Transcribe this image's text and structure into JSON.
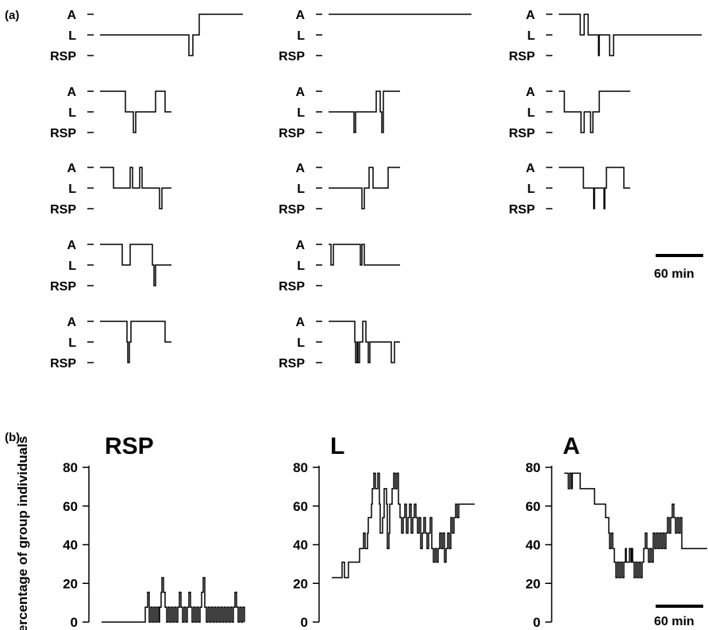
{
  "panel_labels": {
    "a": "(a)",
    "b": "(b)"
  },
  "scale_bar_label": "60 min",
  "chart_data": [
    {
      "type": "line",
      "panel": "(a)",
      "state_labels": [
        "A",
        "L",
        "RSP"
      ],
      "x_units": "min",
      "traces": [
        {
          "steps": [
            [
              0,
              "L"
            ],
            [
              112,
              "RSP"
            ],
            [
              117,
              "L"
            ],
            [
              125,
              "A"
            ],
            [
              180,
              "A"
            ]
          ]
        },
        {
          "steps": [
            [
              0,
              "A"
            ],
            [
              180,
              "A"
            ]
          ]
        },
        {
          "steps": [
            [
              0,
              "A"
            ],
            [
              27,
              "L"
            ],
            [
              32,
              "A"
            ],
            [
              37,
              "L"
            ],
            [
              41,
              "L"
            ],
            [
              50,
              "RSP"
            ],
            [
              51,
              "L"
            ],
            [
              64,
              "RSP"
            ],
            [
              69,
              "L"
            ],
            [
              180,
              "L"
            ]
          ]
        },
        {
          "steps": [
            [
              0,
              "A"
            ],
            [
              32,
              "L"
            ],
            [
              42,
              "RSP"
            ],
            [
              45,
              "L"
            ],
            [
              70,
              "A"
            ],
            [
              82,
              "L"
            ],
            [
              90,
              "L"
            ]
          ]
        },
        {
          "steps": [
            [
              0,
              "L"
            ],
            [
              32,
              "RSP"
            ],
            [
              34,
              "L"
            ],
            [
              60,
              "A"
            ],
            [
              63,
              "A"
            ],
            [
              65,
              "L"
            ],
            [
              67,
              "RSP"
            ],
            [
              69,
              "A"
            ],
            [
              90,
              "A"
            ]
          ]
        },
        {
          "steps": [
            [
              0,
              "A"
            ],
            [
              7,
              "L"
            ],
            [
              28,
              "RSP"
            ],
            [
              32,
              "L"
            ],
            [
              40,
              "RSP"
            ],
            [
              43,
              "L"
            ],
            [
              51,
              "A"
            ],
            [
              90,
              "A"
            ]
          ]
        },
        {
          "steps": [
            [
              0,
              "A"
            ],
            [
              17,
              "L"
            ],
            [
              38,
              "A"
            ],
            [
              41,
              "L"
            ],
            [
              50,
              "A"
            ],
            [
              53,
              "L"
            ],
            [
              75,
              "RSP"
            ],
            [
              78,
              "L"
            ],
            [
              90,
              "L"
            ]
          ]
        },
        {
          "steps": [
            [
              0,
              "L"
            ],
            [
              42,
              "RSP"
            ],
            [
              45,
              "L"
            ],
            [
              51,
              "A"
            ],
            [
              56,
              "L"
            ],
            [
              75,
              "A"
            ],
            [
              90,
              "A"
            ]
          ]
        },
        {
          "steps": [
            [
              0,
              "A"
            ],
            [
              31,
              "L"
            ],
            [
              44,
              "RSP"
            ],
            [
              45,
              "L"
            ],
            [
              57,
              "RSP"
            ],
            [
              58,
              "L"
            ],
            [
              60,
              "A"
            ],
            [
              82,
              "L"
            ],
            [
              90,
              "L"
            ]
          ]
        },
        {
          "steps": [
            [
              0,
              "A"
            ],
            [
              28,
              "L"
            ],
            [
              38,
              "A"
            ],
            [
              66,
              "L"
            ],
            [
              68,
              "RSP"
            ],
            [
              70,
              "L"
            ],
            [
              90,
              "L"
            ]
          ]
        },
        {
          "steps": [
            [
              0,
              "A"
            ],
            [
              3,
              "L"
            ],
            [
              6,
              "A"
            ],
            [
              40,
              "L"
            ],
            [
              42,
              "A"
            ],
            [
              45,
              "L"
            ],
            [
              90,
              "L"
            ]
          ]
        },
        {
          "steps": [
            [
              0,
              "A"
            ],
            [
              34,
              "L"
            ],
            [
              35,
              "RSP"
            ],
            [
              37,
              "L"
            ],
            [
              39,
              "A"
            ],
            [
              82,
              "L"
            ],
            [
              90,
              "L"
            ]
          ]
        },
        {
          "steps": [
            [
              0,
              "A"
            ],
            [
              33,
              "L"
            ],
            [
              34,
              "RSP"
            ],
            [
              36,
              "L"
            ],
            [
              37,
              "RSP"
            ],
            [
              39,
              "L"
            ],
            [
              43,
              "A"
            ],
            [
              47,
              "L"
            ],
            [
              50,
              "RSP"
            ],
            [
              52,
              "L"
            ],
            [
              79,
              "RSP"
            ],
            [
              83,
              "L"
            ],
            [
              90,
              "L"
            ]
          ]
        }
      ]
    },
    {
      "type": "line",
      "panel": "(b)",
      "title": "RSP",
      "ylabel": "Percentage of group individuals",
      "y_ticks": [
        0,
        20,
        40,
        60,
        80
      ],
      "ylim": [
        0,
        80
      ],
      "xlim": [
        0,
        180
      ],
      "x": [
        0,
        55,
        58,
        60,
        62,
        64,
        66,
        68,
        70,
        72,
        73,
        75,
        76,
        78,
        80,
        82,
        84,
        86,
        88,
        90,
        92,
        94,
        96,
        98,
        100,
        102,
        104,
        106,
        108,
        110,
        112,
        114,
        116,
        118,
        120,
        122,
        124,
        126,
        128,
        130,
        132,
        134,
        136,
        138,
        140,
        142,
        144,
        146,
        148,
        150,
        152,
        154,
        156,
        158,
        160,
        162,
        164,
        166,
        168,
        170,
        172,
        174,
        176,
        178,
        180
      ],
      "y": [
        0,
        7.7,
        15.4,
        0,
        7.7,
        0,
        7.7,
        0,
        7.7,
        0,
        7.7,
        15.4,
        23,
        15.4,
        7.7,
        0,
        7.7,
        0,
        7.7,
        0,
        7.7,
        0,
        7.7,
        15.4,
        7.7,
        0,
        7.7,
        0,
        7.7,
        15.4,
        7.7,
        0,
        7.7,
        0,
        7.7,
        0,
        7.7,
        15.4,
        23,
        7.7,
        0,
        7.7,
        0,
        7.7,
        0,
        7.7,
        0,
        7.7,
        0,
        7.7,
        0,
        7.7,
        0,
        7.7,
        0,
        7.7,
        0,
        7.7,
        15.4,
        7.7,
        0,
        7.7,
        0,
        7.7,
        0
      ]
    },
    {
      "type": "line",
      "panel": "(b)",
      "title": "L",
      "y_ticks": [
        0,
        20,
        40,
        60,
        80
      ],
      "ylim": [
        0,
        80
      ],
      "xlim": [
        0,
        180
      ],
      "x": [
        0,
        9,
        13,
        16,
        21,
        35,
        37,
        40,
        42,
        45,
        46,
        50,
        51,
        53,
        55,
        58,
        60,
        61,
        64,
        66,
        69,
        70,
        72,
        73,
        76,
        78,
        80,
        82,
        84,
        86,
        88,
        90,
        92,
        94,
        96,
        98,
        100,
        102,
        104,
        106,
        108,
        110,
        112,
        114,
        116,
        118,
        120,
        122,
        124,
        126,
        128,
        130,
        132,
        134,
        136,
        138,
        140,
        142,
        144,
        146,
        148,
        150,
        152,
        154,
        156,
        158,
        160,
        162,
        164,
        166,
        168,
        170,
        172,
        174,
        176,
        178,
        180
      ],
      "y": [
        23,
        23,
        31,
        23,
        31,
        38,
        38,
        46,
        38,
        46,
        54,
        61,
        69,
        77,
        69,
        77,
        61,
        46,
        54,
        69,
        61,
        38,
        46,
        61,
        69,
        77,
        69,
        77,
        61,
        54,
        46,
        54,
        61,
        46,
        54,
        61,
        46,
        54,
        61,
        54,
        46,
        54,
        38,
        46,
        54,
        46,
        38,
        46,
        54,
        38,
        31,
        38,
        31,
        38,
        46,
        38,
        46,
        31,
        38,
        46,
        38,
        54,
        46,
        54,
        61,
        54,
        61,
        61,
        61,
        61,
        61,
        61,
        61,
        61,
        61,
        61,
        61
      ]
    },
    {
      "type": "line",
      "panel": "(b)",
      "title": "A",
      "y_ticks": [
        0,
        20,
        40,
        60,
        80
      ],
      "ylim": [
        0,
        80
      ],
      "xlim": [
        0,
        180
      ],
      "x": [
        0,
        5,
        7,
        9,
        10,
        20,
        38,
        52,
        56,
        57,
        59,
        61,
        63,
        65,
        67,
        69,
        71,
        73,
        75,
        77,
        78,
        82,
        84,
        85,
        86,
        88,
        90,
        92,
        94,
        96,
        98,
        100,
        102,
        104,
        106,
        108,
        110,
        112,
        114,
        116,
        118,
        120,
        122,
        124,
        126,
        128,
        130,
        132,
        134,
        136,
        138,
        140,
        142,
        144,
        146,
        148,
        150,
        152,
        154,
        156,
        158,
        160,
        162,
        164,
        166,
        168,
        170,
        172,
        174,
        176,
        178,
        180
      ],
      "y": [
        77,
        69,
        77,
        69,
        77,
        69,
        61,
        54,
        46,
        38,
        46,
        38,
        31,
        23,
        31,
        23,
        31,
        23,
        31,
        38,
        31,
        38,
        31,
        38,
        31,
        23,
        31,
        23,
        31,
        23,
        31,
        38,
        46,
        38,
        31,
        38,
        31,
        46,
        38,
        46,
        38,
        46,
        38,
        46,
        38,
        46,
        54,
        46,
        54,
        61,
        54,
        46,
        54,
        46,
        54,
        38,
        38,
        38,
        38,
        38,
        38,
        38,
        38,
        38,
        38,
        38,
        38,
        38,
        38,
        38,
        38,
        38
      ]
    }
  ]
}
